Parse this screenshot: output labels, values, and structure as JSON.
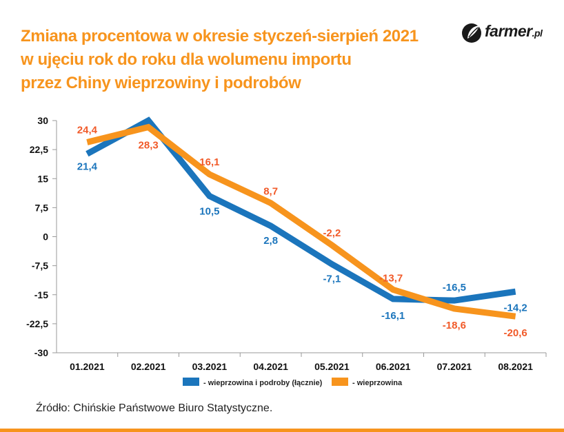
{
  "title_lines": [
    "Zmiana procentowa w okresie styczeń-sierpień 2021",
    "w ujęciu rok do roku dla wolumenu importu",
    "przez Chiny wieprzowiny i podrobów"
  ],
  "logo": {
    "brand": "farmer",
    "suffix": ".pl"
  },
  "source": "Źródło: Chińskie Państwowe Biuro Statystyczne.",
  "colors": {
    "accent": "#F7941D",
    "blue": "#1B75BC",
    "orange": "#F7941D",
    "label_orange": "#F15A29",
    "grid": "#d9d9d9"
  },
  "chart_data": {
    "type": "line",
    "categories": [
      "01.2021",
      "02.2021",
      "03.2021",
      "04.2021",
      "05.2021",
      "06.2021",
      "07.2021",
      "08.2021"
    ],
    "y_ticks": [
      "30",
      "22,5",
      "15",
      "7,5",
      "0",
      "-7,5",
      "-15",
      "-22,5",
      "-30"
    ],
    "ylim": [
      -30,
      30
    ],
    "grid": false,
    "legend_position": "bottom",
    "series": [
      {
        "name": "- wieprzowina i podroby (łącznie)",
        "color": "#1B75BC",
        "values": [
          21.4,
          30,
          10.5,
          2.8,
          -7.1,
          -16.1,
          -16.5,
          -14.2
        ],
        "labels": [
          "21,4",
          "",
          "10,5",
          "2,8",
          "-7,1",
          "-16,1",
          "-16,5",
          "-14,2"
        ]
      },
      {
        "name": "- wieprzowina",
        "color": "#F7941D",
        "values": [
          24.4,
          28.3,
          16.1,
          8.7,
          -2.2,
          -13.7,
          -18.6,
          -20.6
        ],
        "labels": [
          "24,4",
          "28,3",
          "16,1",
          "8,7",
          "-2,2",
          "-13,7",
          "-18,6",
          "-20,6"
        ]
      }
    ]
  }
}
